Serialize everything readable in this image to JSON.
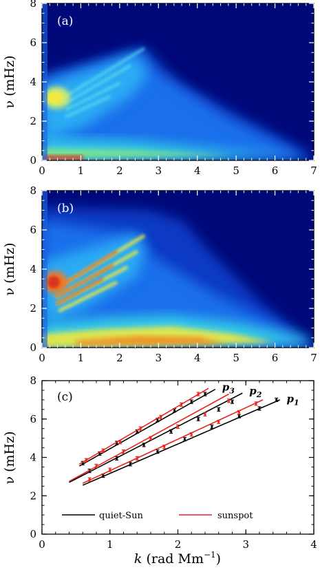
{
  "chart_data": [
    {
      "type": "heatmap",
      "panel_label": "(a)",
      "ylabel": "ν (mHz)",
      "xlabel": "",
      "xlim": [
        0,
        7
      ],
      "ylim": [
        0,
        8
      ],
      "xticks": [
        "0",
        "1",
        "2",
        "3",
        "4",
        "5",
        "6",
        "7"
      ],
      "yticks": [
        "0",
        "2",
        "4",
        "6",
        "8"
      ],
      "colormap": "jet",
      "features": [
        {
          "kind": "f-mode-peak",
          "k_max": 0.9,
          "nu_peak": 3.1,
          "intensity": 0.72
        },
        {
          "kind": "low-frequency-band",
          "nu": 0.15,
          "intensity": 0.55
        }
      ]
    },
    {
      "type": "heatmap",
      "panel_label": "(b)",
      "ylabel": "ν (mHz)",
      "xlabel": "",
      "xlim": [
        0,
        7
      ],
      "ylim": [
        0,
        8
      ],
      "xticks": [
        "0",
        "1",
        "2",
        "3",
        "4",
        "5",
        "6",
        "7"
      ],
      "yticks": [
        "0",
        "2",
        "4",
        "6",
        "8"
      ],
      "colormap": "jet",
      "features": [
        {
          "kind": "f-mode-peak",
          "k_max": 0.9,
          "nu_peak": 3.1,
          "intensity": 0.92
        },
        {
          "kind": "low-frequency-band",
          "nu": 0.25,
          "intensity": 0.85
        }
      ]
    },
    {
      "type": "line",
      "panel_label": "(c)",
      "xlabel": "k (rad Mm⁻¹)",
      "ylabel": "ν (mHz)",
      "xlim": [
        0,
        4
      ],
      "ylim": [
        0,
        8
      ],
      "xticks": [
        "0",
        "1",
        "2",
        "3",
        "4"
      ],
      "yticks": [
        "0",
        "2",
        "4",
        "6",
        "8"
      ],
      "legend": {
        "placement": "bottom",
        "entries": [
          {
            "label": "quiet-Sun",
            "color": "#000000"
          },
          {
            "label": "sunspot",
            "color": "#e8241c"
          }
        ]
      },
      "series": [
        {
          "name": "p₁",
          "legend": "quiet-Sun",
          "color": "#000000",
          "line": [
            [
              0.6,
              2.55
            ],
            [
              3.5,
              7.0
            ]
          ],
          "points": [
            [
              0.9,
              3.05
            ],
            [
              1.3,
              3.65
            ],
            [
              1.7,
              4.3
            ],
            [
              2.1,
              4.95
            ],
            [
              2.5,
              5.6
            ],
            [
              2.9,
              6.15
            ],
            [
              3.2,
              6.55
            ],
            [
              3.45,
              7.0
            ]
          ]
        },
        {
          "name": "p₁",
          "legend": "sunspot",
          "color": "#e8241c",
          "line": [
            [
              0.6,
              2.65
            ],
            [
              3.25,
              7.0
            ]
          ],
          "points": [
            [
              0.7,
              2.85
            ],
            [
              1.0,
              3.35
            ],
            [
              1.4,
              3.95
            ],
            [
              1.8,
              4.55
            ],
            [
              2.2,
              5.2
            ],
            [
              2.6,
              5.85
            ],
            [
              2.9,
              6.35
            ],
            [
              3.15,
              6.8
            ]
          ]
        },
        {
          "name": "p₂",
          "legend": "quiet-Sun",
          "color": "#000000",
          "line": [
            [
              0.4,
              2.7
            ],
            [
              2.95,
              7.35
            ]
          ],
          "points": [
            [
              0.7,
              3.3
            ],
            [
              1.1,
              3.95
            ],
            [
              1.5,
              4.65
            ],
            [
              1.9,
              5.35
            ],
            [
              2.3,
              6.0
            ],
            [
              2.6,
              6.5
            ],
            [
              2.8,
              6.9
            ]
          ]
        },
        {
          "name": "p₂",
          "legend": "sunspot",
          "color": "#e8241c",
          "line": [
            [
              0.4,
              2.75
            ],
            [
              2.75,
              7.3
            ]
          ],
          "points": [
            [
              0.8,
              3.55
            ],
            [
              1.2,
              4.3
            ],
            [
              1.6,
              5.0
            ],
            [
              2.0,
              5.6
            ],
            [
              2.4,
              6.25
            ],
            [
              2.75,
              6.95
            ]
          ]
        },
        {
          "name": "p₃",
          "legend": "quiet-Sun",
          "color": "#000000",
          "line": [
            [
              0.55,
              3.55
            ],
            [
              2.55,
              7.55
            ]
          ],
          "points": [
            [
              0.6,
              3.7
            ],
            [
              0.85,
              4.2
            ],
            [
              1.1,
              4.75
            ],
            [
              1.4,
              5.35
            ],
            [
              1.7,
              5.95
            ],
            [
              1.95,
              6.45
            ],
            [
              2.2,
              6.9
            ],
            [
              2.4,
              7.3
            ]
          ]
        },
        {
          "name": "p₃",
          "legend": "sunspot",
          "color": "#e8241c",
          "line": [
            [
              0.55,
              3.65
            ],
            [
              2.45,
              7.6
            ]
          ],
          "points": [
            [
              0.65,
              3.85
            ],
            [
              0.9,
              4.35
            ],
            [
              1.15,
              4.8
            ],
            [
              1.45,
              5.5
            ],
            [
              1.75,
              6.1
            ],
            [
              2.05,
              6.75
            ],
            [
              2.3,
              7.3
            ]
          ]
        }
      ],
      "mode_labels": [
        {
          "text": "p",
          "sub": "1"
        },
        {
          "text": "p",
          "sub": "2"
        },
        {
          "text": "p",
          "sub": "3"
        }
      ]
    }
  ]
}
